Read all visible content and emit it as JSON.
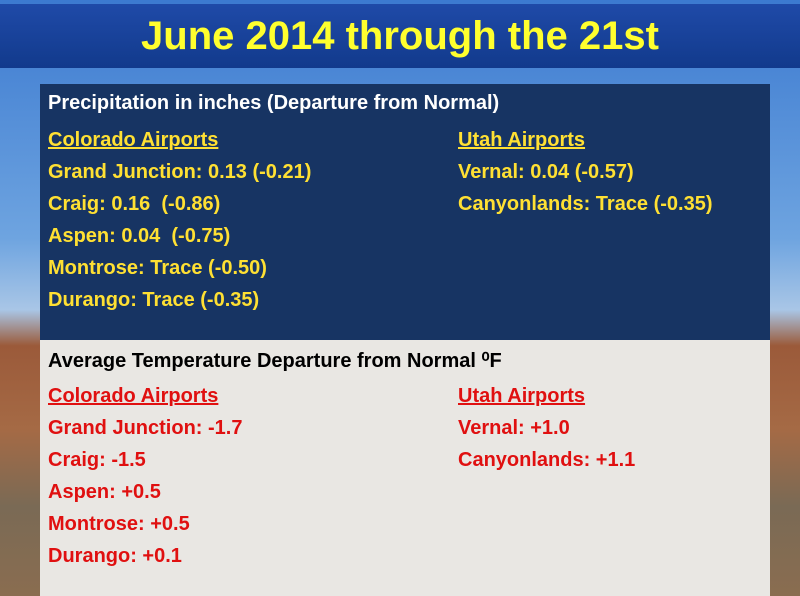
{
  "title": "June 2014 through the 21st",
  "precipitation": {
    "heading": "Precipitation in inches (Departure from Normal)",
    "columns": [
      {
        "header": "Colorado Airports",
        "items": [
          "Grand Junction: 0.13 (-0.21)",
          "Craig: 0.16  (-0.86)",
          "Aspen: 0.04  (-0.75)",
          "Montrose: Trace (-0.50)",
          "Durango: Trace (-0.35)"
        ]
      },
      {
        "header": "Utah Airports",
        "items": [
          "Vernal: 0.04 (-0.57)",
          "Canyonlands: Trace (-0.35)"
        ]
      }
    ]
  },
  "temperature": {
    "heading": "Average Temperature Departure from Normal ⁰F",
    "columns": [
      {
        "header": "Colorado Airports",
        "items": [
          "Grand Junction: -1.7",
          "Craig: -1.5",
          "Aspen: +0.5",
          "Montrose: +0.5",
          "Durango: +0.1"
        ]
      },
      {
        "header": "Utah Airports",
        "items": [
          "Vernal: +1.0",
          "Canyonlands: +1.1"
        ]
      }
    ]
  }
}
